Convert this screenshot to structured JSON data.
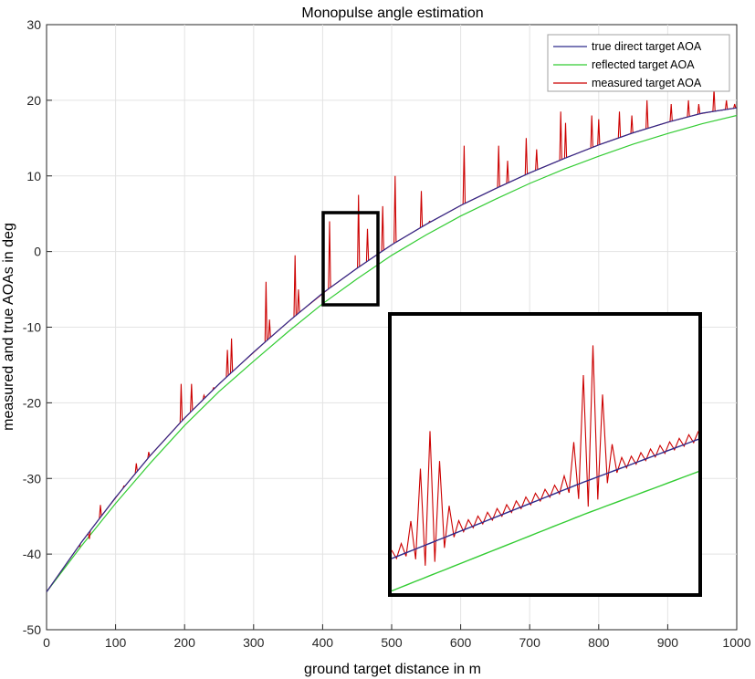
{
  "chart_data": {
    "type": "line",
    "title": "Monopulse angle estimation",
    "xlabel": "ground target distance in m",
    "ylabel": "measured and true AOAs in deg",
    "xlim": [
      0,
      1000
    ],
    "ylim": [
      -50,
      30
    ],
    "xticks": [
      0,
      100,
      200,
      300,
      400,
      500,
      600,
      700,
      800,
      900,
      1000
    ],
    "yticks": [
      -50,
      -40,
      -30,
      -20,
      -10,
      0,
      10,
      20,
      30
    ],
    "grid": true,
    "legend_position": "top-right",
    "series": [
      {
        "name": "true direct target AOA",
        "color": "#2e2a8c",
        "x": [
          0,
          50,
          100,
          150,
          200,
          250,
          300,
          350,
          400,
          450,
          500,
          550,
          600,
          650,
          700,
          750,
          800,
          850,
          900,
          950,
          1000
        ],
        "y": [
          -45,
          -38.5,
          -32.5,
          -27,
          -22,
          -17.5,
          -13.3,
          -9.3,
          -5.5,
          -2.2,
          0.9,
          3.6,
          6.1,
          8.3,
          10.4,
          12.3,
          14.1,
          15.7,
          17.1,
          18.3,
          19
        ]
      },
      {
        "name": "reflected target AOA",
        "color": "#33cc33",
        "x": [
          0,
          50,
          100,
          150,
          200,
          250,
          300,
          350,
          400,
          450,
          500,
          550,
          600,
          650,
          700,
          750,
          800,
          850,
          900,
          950,
          1000
        ],
        "y": [
          -45,
          -39,
          -33.3,
          -28,
          -23,
          -18.5,
          -14.5,
          -10.6,
          -6.9,
          -3.6,
          -0.5,
          2.2,
          4.7,
          6.9,
          9,
          10.9,
          12.6,
          14.2,
          15.6,
          16.9,
          18
        ]
      },
      {
        "name": "measured target AOA",
        "color": "#cc0000",
        "x": [
          0,
          50,
          100,
          150,
          200,
          250,
          300,
          350,
          400,
          450,
          500,
          550,
          600,
          650,
          700,
          750,
          800,
          850,
          900,
          950,
          1000
        ],
        "y": [
          -45,
          -38.5,
          -32.5,
          -27,
          -22,
          -17.5,
          -13.3,
          -9.3,
          -5.5,
          -2.2,
          0.9,
          3.6,
          6.1,
          8.3,
          10.4,
          12.3,
          14.1,
          15.7,
          17.1,
          18.3,
          19
        ],
        "spikes": [
          {
            "x": 48,
            "y": -39
          },
          {
            "x": 62,
            "y": -38
          },
          {
            "x": 78,
            "y": -33.5
          },
          {
            "x": 112,
            "y": -31
          },
          {
            "x": 130,
            "y": -28
          },
          {
            "x": 148,
            "y": -26.5
          },
          {
            "x": 195,
            "y": -17.5
          },
          {
            "x": 210,
            "y": -17.5
          },
          {
            "x": 228,
            "y": -19
          },
          {
            "x": 242,
            "y": -18
          },
          {
            "x": 262,
            "y": -13
          },
          {
            "x": 268,
            "y": -11.5
          },
          {
            "x": 318,
            "y": -4
          },
          {
            "x": 323,
            "y": -9
          },
          {
            "x": 360,
            "y": -0.5
          },
          {
            "x": 365,
            "y": -5
          },
          {
            "x": 410,
            "y": 4
          },
          {
            "x": 452,
            "y": 7.5
          },
          {
            "x": 465,
            "y": 3
          },
          {
            "x": 487,
            "y": 6
          },
          {
            "x": 505,
            "y": 10
          },
          {
            "x": 543,
            "y": 8
          },
          {
            "x": 555,
            "y": 4
          },
          {
            "x": 605,
            "y": 14
          },
          {
            "x": 655,
            "y": 14
          },
          {
            "x": 668,
            "y": 12
          },
          {
            "x": 695,
            "y": 15
          },
          {
            "x": 710,
            "y": 13.5
          },
          {
            "x": 745,
            "y": 18.5
          },
          {
            "x": 752,
            "y": 17
          },
          {
            "x": 790,
            "y": 18
          },
          {
            "x": 800,
            "y": 17.5
          },
          {
            "x": 830,
            "y": 18.5
          },
          {
            "x": 848,
            "y": 18
          },
          {
            "x": 870,
            "y": 20
          },
          {
            "x": 905,
            "y": 19.5
          },
          {
            "x": 930,
            "y": 20
          },
          {
            "x": 945,
            "y": 19.5
          },
          {
            "x": 967,
            "y": 21.5
          },
          {
            "x": 985,
            "y": 20
          },
          {
            "x": 997,
            "y": 19.5
          }
        ]
      }
    ],
    "annotations": [
      {
        "type": "highlight-box",
        "xlim": [
          400,
          480
        ],
        "ylim": [
          -7,
          5
        ]
      },
      {
        "type": "zoom-inset",
        "content_xlim": [
          400,
          480
        ],
        "content_ylim": [
          -7,
          5
        ]
      }
    ]
  }
}
